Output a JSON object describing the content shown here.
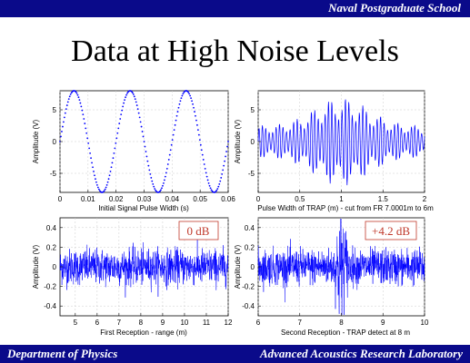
{
  "header": {
    "institution": "Naval Postgraduate School"
  },
  "slide": {
    "title": "Data at High Noise Levels"
  },
  "footer": {
    "left": "Department of Physics",
    "right": "Advanced Acoustics Research Laboratory"
  },
  "colors": {
    "bar": "#0a0a8a",
    "signal": "#0000ff",
    "badge_text": "#c0392b",
    "badge_border": "#c0392b"
  },
  "chart_data": [
    {
      "type": "line",
      "xlabel": "Initial Signal Pulse Width (s)",
      "ylabel": "Amplitude (V)",
      "xlim": [
        0,
        0.06
      ],
      "ylim": [
        -8,
        8
      ],
      "xticks": [
        "0",
        "0.01",
        "0.02",
        "0.03",
        "0.04",
        "0.05",
        "0.06"
      ],
      "yticks": [
        "5",
        "0",
        "-5"
      ],
      "series": [
        {
          "amplitude": 8,
          "period": 0.02,
          "marker": "dots"
        }
      ]
    },
    {
      "type": "line",
      "xlabel": "Pulse Width of TRAP (m) - cut from FR 7.0001m to 6m",
      "ylabel": "Amplitude (V)",
      "xlim": [
        0,
        2
      ],
      "ylim": [
        -8,
        8
      ],
      "xticks": [
        "0",
        "0.5",
        "1",
        "1.5",
        "2"
      ],
      "yticks": [
        "5",
        "0",
        "-5"
      ],
      "series": [
        {
          "peak_amplitude": 7,
          "peak_at": 1.0
        }
      ]
    },
    {
      "type": "line",
      "xlabel": "First Reception  -  range (m)",
      "ylabel": "Amplitude (V)",
      "xlim": [
        4.3,
        12
      ],
      "ylim": [
        -0.5,
        0.5
      ],
      "xticks": [
        "5",
        "6",
        "7",
        "8",
        "9",
        "10",
        "11",
        "12"
      ],
      "yticks": [
        "0.4",
        "0.2",
        "0",
        "-0.2",
        "-0.4"
      ],
      "annotation": "0 dB",
      "series": [
        {
          "noise_amplitude": 0.2
        }
      ]
    },
    {
      "type": "line",
      "xlabel": "Second Reception  -  TRAP detect at 8 m",
      "ylabel": "Amplitude (V)",
      "xlim": [
        6,
        10
      ],
      "ylim": [
        -0.5,
        0.5
      ],
      "xticks": [
        "6",
        "7",
        "8",
        "9",
        "10"
      ],
      "yticks": [
        "0.4",
        "0.2",
        "0",
        "-0.2",
        "-0.4"
      ],
      "annotation": "+4.2 dB",
      "series": [
        {
          "noise_amplitude": 0.2,
          "peak_amplitude": 0.45,
          "peak_at": 8
        }
      ]
    }
  ]
}
